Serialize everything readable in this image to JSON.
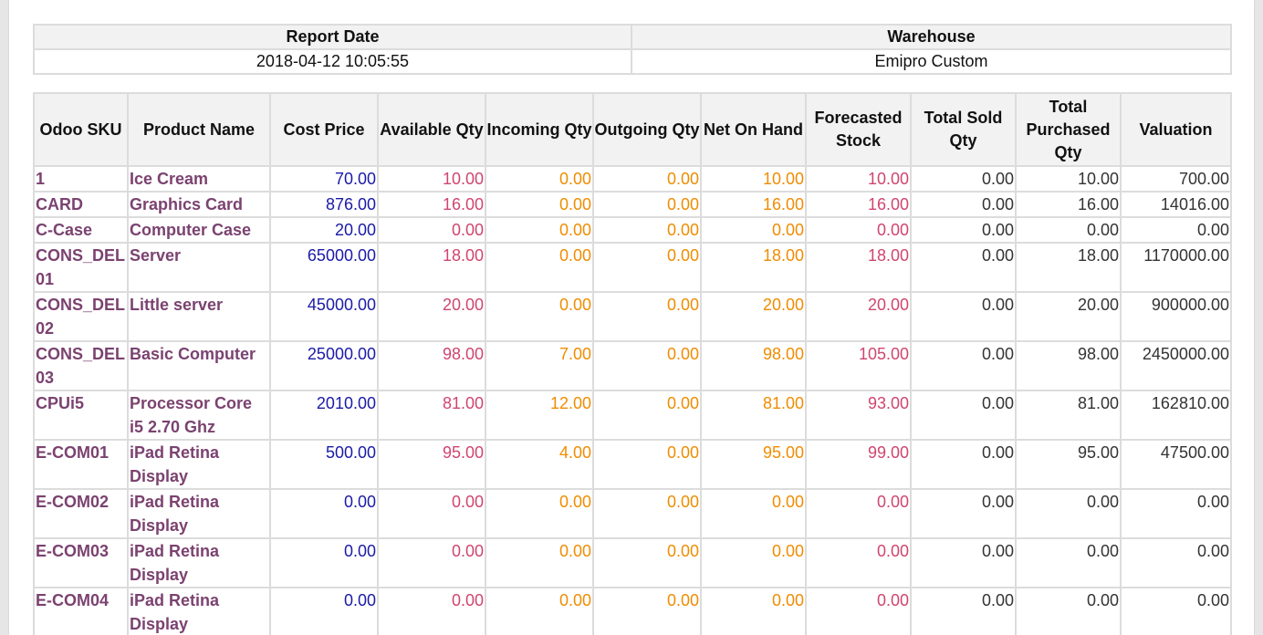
{
  "info": {
    "headers": [
      "Report Date",
      "Warehouse"
    ],
    "values": [
      "2018-04-12 10:05:55",
      "Emipro Custom"
    ]
  },
  "table": {
    "headers": [
      "Odoo SKU",
      "Product Name",
      "Cost Price",
      "Available Qty",
      "Incoming Qty",
      "Outgoing Qty",
      "Net On Hand",
      "Forecasted Stock",
      "Total Sold Qty",
      "Total Purchased Qty",
      "Valuation"
    ],
    "rows": [
      [
        "1",
        "Ice Cream",
        "70.00",
        "10.00",
        "0.00",
        "0.00",
        "10.00",
        "10.00",
        "0.00",
        "10.00",
        "700.00"
      ],
      [
        "CARD",
        "Graphics Card",
        "876.00",
        "16.00",
        "0.00",
        "0.00",
        "16.00",
        "16.00",
        "0.00",
        "16.00",
        "14016.00"
      ],
      [
        "C-Case",
        "Computer Case",
        "20.00",
        "0.00",
        "0.00",
        "0.00",
        "0.00",
        "0.00",
        "0.00",
        "0.00",
        "0.00"
      ],
      [
        "CONS_DEL 01",
        "Server",
        "65000.00",
        "18.00",
        "0.00",
        "0.00",
        "18.00",
        "18.00",
        "0.00",
        "18.00",
        "1170000.00"
      ],
      [
        "CONS_DEL 02",
        "Little server",
        "45000.00",
        "20.00",
        "0.00",
        "0.00",
        "20.00",
        "20.00",
        "0.00",
        "20.00",
        "900000.00"
      ],
      [
        "CONS_DEL 03",
        "Basic Computer",
        "25000.00",
        "98.00",
        "7.00",
        "0.00",
        "98.00",
        "105.00",
        "0.00",
        "98.00",
        "2450000.00"
      ],
      [
        "CPUi5",
        "Processor Core i5 2.70 Ghz",
        "2010.00",
        "81.00",
        "12.00",
        "0.00",
        "81.00",
        "93.00",
        "0.00",
        "81.00",
        "162810.00"
      ],
      [
        "E-COM01",
        "iPad Retina Display",
        "500.00",
        "95.00",
        "4.00",
        "0.00",
        "95.00",
        "99.00",
        "0.00",
        "95.00",
        "47500.00"
      ],
      [
        "E-COM02",
        "iPad Retina Display",
        "0.00",
        "0.00",
        "0.00",
        "0.00",
        "0.00",
        "0.00",
        "0.00",
        "0.00",
        "0.00"
      ],
      [
        "E-COM03",
        "iPad Retina Display",
        "0.00",
        "0.00",
        "0.00",
        "0.00",
        "0.00",
        "0.00",
        "0.00",
        "0.00",
        "0.00"
      ],
      [
        "E-COM04",
        "iPad Retina Display",
        "0.00",
        "0.00",
        "0.00",
        "0.00",
        "0.00",
        "0.00",
        "0.00",
        "0.00",
        "0.00"
      ]
    ]
  }
}
